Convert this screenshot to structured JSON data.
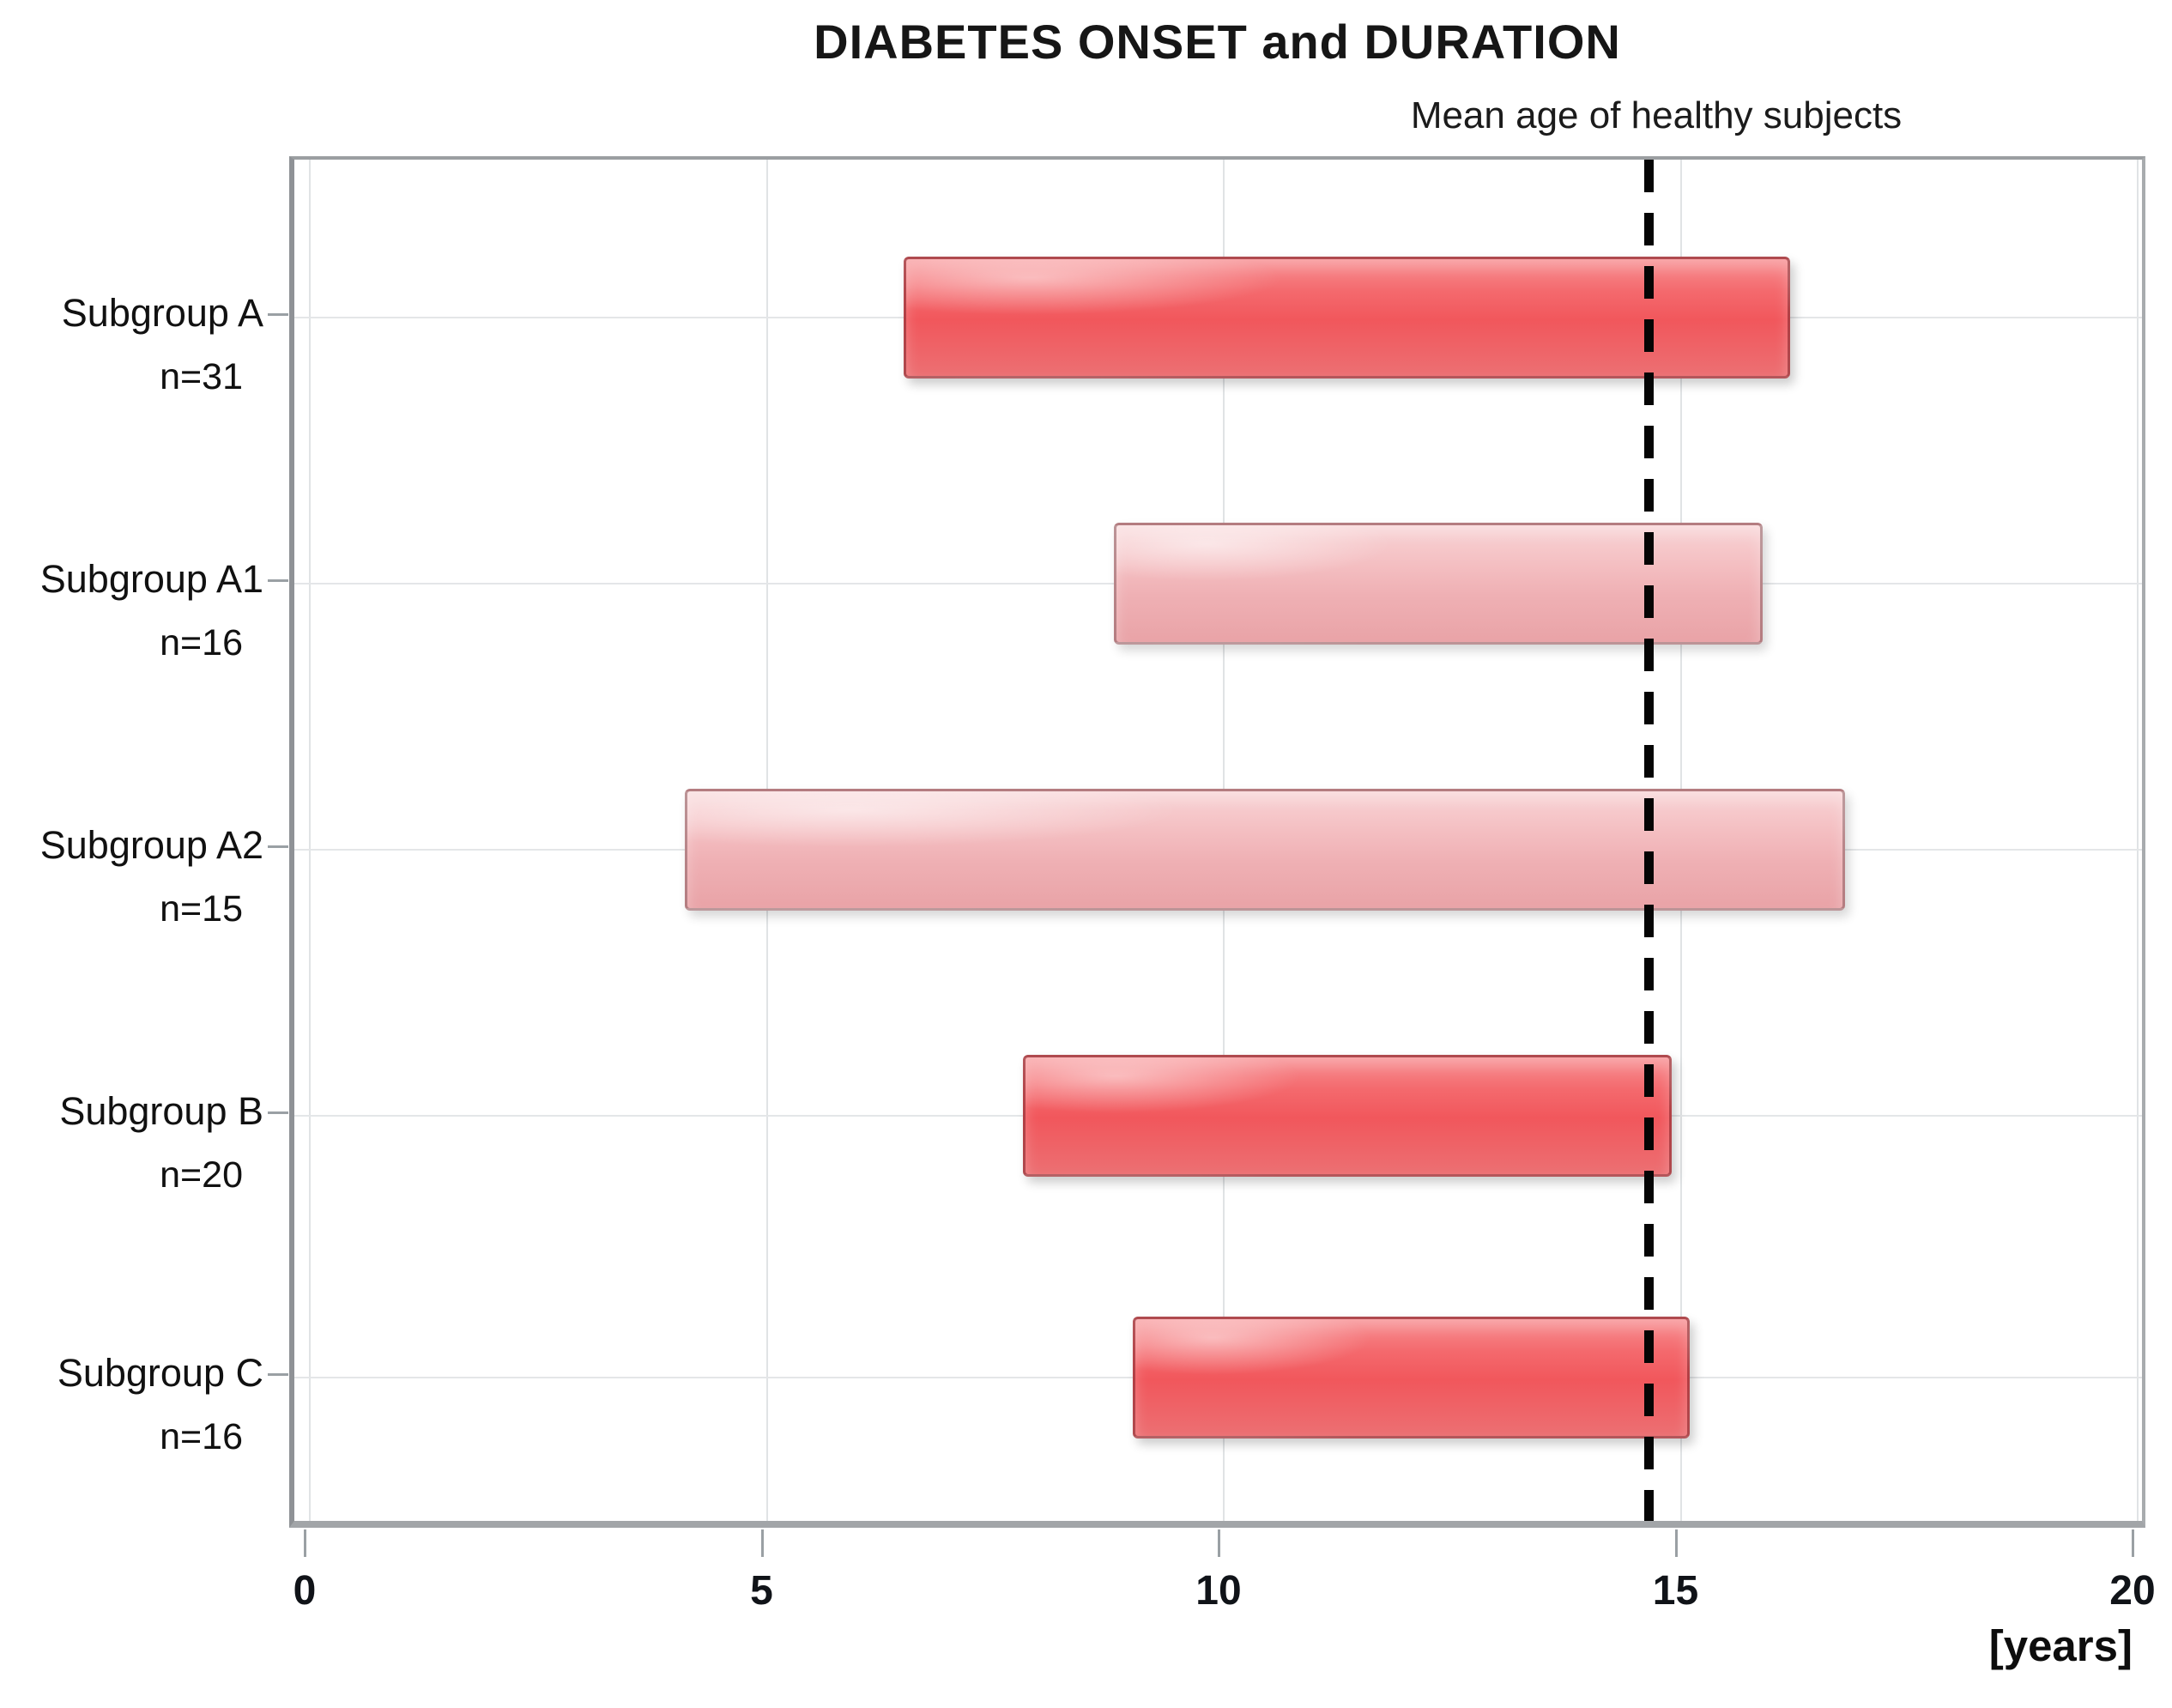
{
  "chart_data": {
    "type": "bar",
    "orientation": "horizontal",
    "title": "DIABETES ONSET and DURATION",
    "xlabel": "[years]",
    "xlim": [
      0,
      20
    ],
    "xticks": [
      0,
      5,
      10,
      15,
      20
    ],
    "grid": "both",
    "legend": "none",
    "reference_line": {
      "label": "Mean age of healthy subjects",
      "x": 14.65,
      "style": "dashed-vertical-black"
    },
    "rows": [
      {
        "category": "Subgroup A",
        "n_label": "n=31",
        "n": 31,
        "start": 6.5,
        "end": 16.2,
        "variant": "red"
      },
      {
        "category": "Subgroup A1",
        "n_label": "n=16",
        "n": 16,
        "start": 8.8,
        "end": 15.9,
        "variant": "pale"
      },
      {
        "category": "Subgroup A2",
        "n_label": "n=15",
        "n": 15,
        "start": 4.1,
        "end": 16.8,
        "variant": "pale"
      },
      {
        "category": "Subgroup B",
        "n_label": "n=20",
        "n": 20,
        "start": 7.8,
        "end": 14.9,
        "variant": "red"
      },
      {
        "category": "Subgroup C",
        "n_label": "n=16",
        "n": 16,
        "start": 9.0,
        "end": 15.1,
        "variant": "red"
      }
    ],
    "colors": {
      "bar_red": "#f1575c",
      "bar_red_light": "#f78d90",
      "bar_pale": "#efb0b4",
      "bar_pale_light": "#f8d3d5",
      "bar_border_red": "#7e2c31",
      "bar_border_pale": "#80565a",
      "reference_line": "#050505",
      "gridline": "#e0e3e5",
      "plot_border": "#95989c",
      "text": "#111111",
      "background": "#ffffff"
    }
  }
}
